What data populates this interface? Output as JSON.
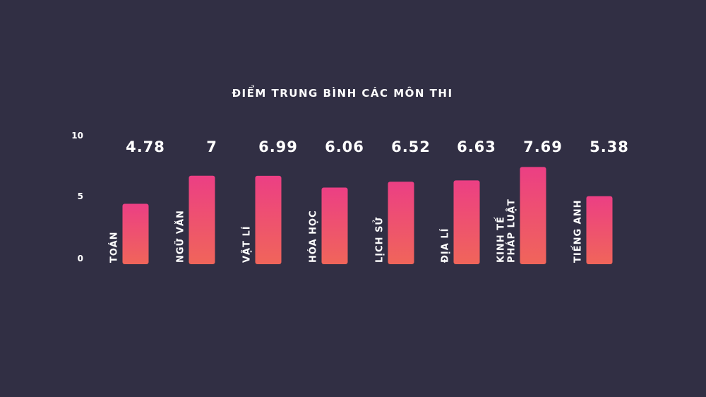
{
  "chart_data": {
    "type": "bar",
    "title": "ĐIỂM TRUNG BÌNH CÁC MÔN THI",
    "categories": [
      [
        "TOÁN"
      ],
      [
        "NGỮ VĂN"
      ],
      [
        "VẬT LÍ"
      ],
      [
        "HÓA HỌC"
      ],
      [
        "LỊCH SỬ"
      ],
      [
        "ĐỊA LÍ"
      ],
      [
        "KINH TẾ",
        "PHÁP LUẬT"
      ],
      [
        "TIẾNG ANH"
      ]
    ],
    "values": [
      4.78,
      7,
      6.99,
      6.06,
      6.52,
      6.63,
      7.69,
      5.38
    ],
    "value_labels": [
      "4.78",
      "7",
      "6.99",
      "6.06",
      "6.52",
      "6.63",
      "7.69",
      "5.38"
    ],
    "ylim": [
      0,
      10
    ],
    "yticks": [
      0,
      5,
      10
    ],
    "grid": false,
    "colors": {
      "background": "#312f44",
      "bar_top": "#ec3f84",
      "bar_bottom": "#f0655a",
      "text": "#ffffff"
    }
  }
}
